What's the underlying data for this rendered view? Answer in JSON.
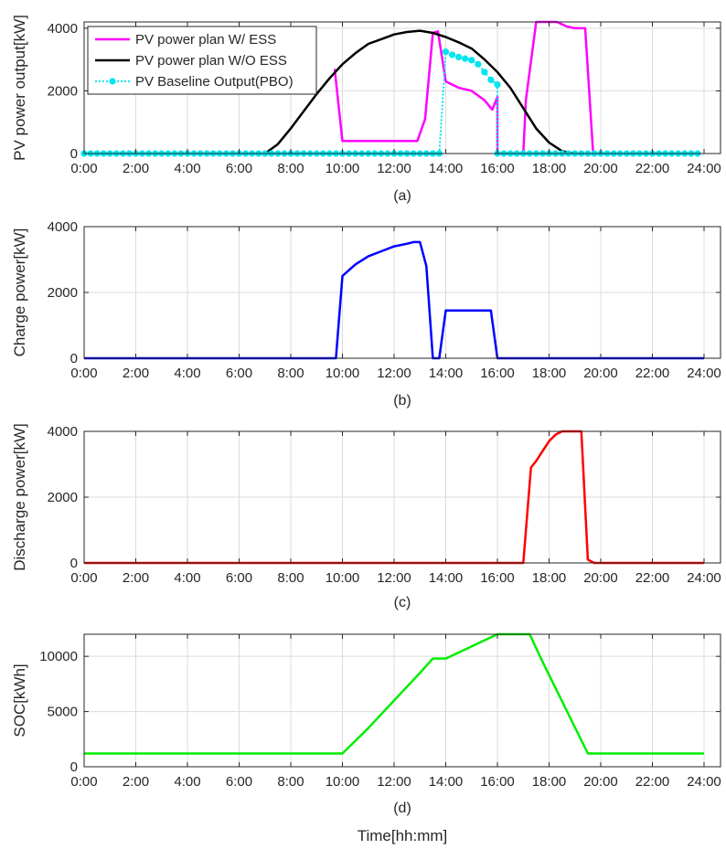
{
  "xlabel": "Time[hh:mm]",
  "x_ticks": [
    "0:00",
    "2:00",
    "4:00",
    "6:00",
    "8:00",
    "10:00",
    "12:00",
    "14:00",
    "16:00",
    "18:00",
    "20:00",
    "22:00",
    "24:00"
  ],
  "chart_data": [
    {
      "type": "line",
      "subtitle": "(a)",
      "ylabel": "PV power output[kW]",
      "xlim": [
        0,
        24
      ],
      "ylim": [
        0,
        4200
      ],
      "yticks": [
        0,
        2000,
        4000
      ],
      "grid": true,
      "legend": "top-left",
      "series": [
        {
          "name": "PV power plan W/ ESS",
          "color": "#ff00ff",
          "style": "solid",
          "points": [
            [
              9.7,
              2700
            ],
            [
              10,
              400
            ],
            [
              11,
              400
            ],
            [
              12,
              400
            ],
            [
              12.9,
              400
            ],
            [
              13.2,
              1100
            ],
            [
              13.5,
              3850
            ],
            [
              13.7,
              3900
            ],
            [
              14,
              2300
            ],
            [
              14.5,
              2100
            ],
            [
              15,
              2000
            ],
            [
              15.5,
              1700
            ],
            [
              15.8,
              1400
            ],
            [
              16,
              1800
            ],
            [
              16,
              0
            ],
            [
              17,
              0
            ],
            [
              17.1,
              1700
            ],
            [
              17.5,
              4200
            ],
            [
              18,
              4200
            ],
            [
              18.3,
              4200
            ],
            [
              18.7,
              4050
            ],
            [
              19,
              4000
            ],
            [
              19.4,
              4000
            ],
            [
              19.7,
              100
            ],
            [
              19.75,
              0
            ]
          ]
        },
        {
          "name": "PV power plan W/O ESS",
          "color": "#000000",
          "style": "solid",
          "points": [
            [
              7.0,
              0
            ],
            [
              7.5,
              300
            ],
            [
              8,
              800
            ],
            [
              8.5,
              1350
            ],
            [
              9,
              1900
            ],
            [
              9.5,
              2400
            ],
            [
              10,
              2850
            ],
            [
              10.5,
              3200
            ],
            [
              11,
              3500
            ],
            [
              11.5,
              3650
            ],
            [
              12,
              3800
            ],
            [
              12.5,
              3880
            ],
            [
              13,
              3920
            ],
            [
              13.5,
              3850
            ],
            [
              14,
              3720
            ],
            [
              14.5,
              3550
            ],
            [
              15,
              3350
            ],
            [
              15.5,
              3000
            ],
            [
              16,
              2600
            ],
            [
              16.5,
              2100
            ],
            [
              17,
              1450
            ],
            [
              17.5,
              800
            ],
            [
              18,
              350
            ],
            [
              18.5,
              80
            ],
            [
              19,
              0
            ]
          ]
        },
        {
          "name": "PV Baseline Output(PBO)",
          "color": "#00e5ee",
          "style": "dotted-markers",
          "points": [
            [
              0,
              0
            ],
            [
              0.25,
              0
            ],
            [
              0.5,
              0
            ],
            [
              0.75,
              0
            ],
            [
              1,
              0
            ],
            [
              1.25,
              0
            ],
            [
              1.5,
              0
            ],
            [
              1.75,
              0
            ],
            [
              2,
              0
            ],
            [
              2.25,
              0
            ],
            [
              2.5,
              0
            ],
            [
              2.75,
              0
            ],
            [
              3,
              0
            ],
            [
              3.25,
              0
            ],
            [
              3.5,
              0
            ],
            [
              3.75,
              0
            ],
            [
              4,
              0
            ],
            [
              4.25,
              0
            ],
            [
              4.5,
              0
            ],
            [
              4.75,
              0
            ],
            [
              5,
              0
            ],
            [
              5.25,
              0
            ],
            [
              5.5,
              0
            ],
            [
              5.75,
              0
            ],
            [
              6,
              0
            ],
            [
              6.25,
              0
            ],
            [
              6.5,
              0
            ],
            [
              6.75,
              0
            ],
            [
              7,
              0
            ],
            [
              7.25,
              0
            ],
            [
              7.5,
              0
            ],
            [
              7.75,
              0
            ],
            [
              8,
              0
            ],
            [
              8.25,
              0
            ],
            [
              8.5,
              0
            ],
            [
              8.75,
              0
            ],
            [
              9,
              0
            ],
            [
              9.25,
              0
            ],
            [
              9.5,
              0
            ],
            [
              9.75,
              0
            ],
            [
              10,
              0
            ],
            [
              10.25,
              0
            ],
            [
              10.5,
              0
            ],
            [
              10.75,
              0
            ],
            [
              11,
              0
            ],
            [
              11.25,
              0
            ],
            [
              11.5,
              0
            ],
            [
              11.75,
              0
            ],
            [
              12,
              0
            ],
            [
              12.25,
              0
            ],
            [
              12.5,
              0
            ],
            [
              12.75,
              0
            ],
            [
              13,
              0
            ],
            [
              13.25,
              0
            ],
            [
              13.5,
              0
            ],
            [
              13.75,
              0
            ],
            [
              14,
              3250
            ],
            [
              14.25,
              3150
            ],
            [
              14.5,
              3080
            ],
            [
              14.75,
              3030
            ],
            [
              15,
              2980
            ],
            [
              15.25,
              2850
            ],
            [
              15.5,
              2600
            ],
            [
              15.75,
              2350
            ],
            [
              16,
              2200
            ],
            [
              16,
              0
            ],
            [
              16.25,
              0
            ],
            [
              16.5,
              0
            ],
            [
              16.75,
              0
            ],
            [
              17,
              0
            ],
            [
              17.25,
              0
            ],
            [
              17.5,
              0
            ],
            [
              17.75,
              0
            ],
            [
              18,
              0
            ],
            [
              18.25,
              0
            ],
            [
              18.5,
              0
            ],
            [
              18.75,
              0
            ],
            [
              19,
              0
            ],
            [
              19.25,
              0
            ],
            [
              19.5,
              0
            ],
            [
              19.75,
              0
            ],
            [
              20,
              0
            ],
            [
              20.25,
              0
            ],
            [
              20.5,
              0
            ],
            [
              20.75,
              0
            ],
            [
              21,
              0
            ],
            [
              21.25,
              0
            ],
            [
              21.5,
              0
            ],
            [
              21.75,
              0
            ],
            [
              22,
              0
            ],
            [
              22.25,
              0
            ],
            [
              22.5,
              0
            ],
            [
              22.75,
              0
            ],
            [
              23,
              0
            ],
            [
              23.25,
              0
            ],
            [
              23.5,
              0
            ],
            [
              23.75,
              0
            ]
          ]
        }
      ]
    },
    {
      "type": "line",
      "subtitle": "(b)",
      "ylabel": "Charge power[kW]",
      "xlim": [
        0,
        24
      ],
      "ylim": [
        0,
        4000
      ],
      "yticks": [
        0,
        2000,
        4000
      ],
      "grid": true,
      "series": [
        {
          "color": "#0000ff",
          "points": [
            [
              0,
              0
            ],
            [
              9.75,
              0
            ],
            [
              10,
              2500
            ],
            [
              10.5,
              2850
            ],
            [
              11,
              3100
            ],
            [
              11.5,
              3250
            ],
            [
              12,
              3400
            ],
            [
              12.5,
              3480
            ],
            [
              12.75,
              3530
            ],
            [
              13,
              3530
            ],
            [
              13.25,
              2800
            ],
            [
              13.5,
              0
            ],
            [
              13.75,
              0
            ],
            [
              14,
              1450
            ],
            [
              14.5,
              1450
            ],
            [
              15,
              1450
            ],
            [
              15.5,
              1450
            ],
            [
              15.75,
              1450
            ],
            [
              16,
              0
            ],
            [
              24,
              0
            ]
          ]
        }
      ]
    },
    {
      "type": "line",
      "subtitle": "(c)",
      "ylabel": "Discharge power[kW]",
      "xlim": [
        0,
        24
      ],
      "ylim": [
        0,
        4000
      ],
      "yticks": [
        0,
        2000,
        4000
      ],
      "grid": true,
      "series": [
        {
          "color": "#ff0000",
          "points": [
            [
              0,
              0
            ],
            [
              17,
              0
            ],
            [
              17.3,
              2900
            ],
            [
              17.5,
              3100
            ],
            [
              17.75,
              3400
            ],
            [
              18,
              3700
            ],
            [
              18.25,
              3900
            ],
            [
              18.5,
              4000
            ],
            [
              18.75,
              4000
            ],
            [
              19,
              4000
            ],
            [
              19.25,
              4000
            ],
            [
              19.5,
              100
            ],
            [
              19.75,
              0
            ],
            [
              24,
              0
            ]
          ]
        }
      ]
    },
    {
      "type": "line",
      "subtitle": "(d)",
      "ylabel": "SOC[kWh]",
      "xlabel": "Time[hh:mm]",
      "xlim": [
        0,
        24
      ],
      "ylim": [
        0,
        12000
      ],
      "yticks": [
        0,
        5000,
        10000
      ],
      "grid": true,
      "series": [
        {
          "color": "#00ee00",
          "points": [
            [
              0,
              1200
            ],
            [
              10,
              1200
            ],
            [
              11,
              3500
            ],
            [
              12,
              6000
            ],
            [
              13,
              8500
            ],
            [
              13.5,
              9800
            ],
            [
              14,
              9800
            ],
            [
              16,
              12000
            ],
            [
              17.25,
              12000
            ],
            [
              17.75,
              9500
            ],
            [
              19.5,
              1200
            ],
            [
              24,
              1200
            ]
          ]
        }
      ]
    }
  ]
}
